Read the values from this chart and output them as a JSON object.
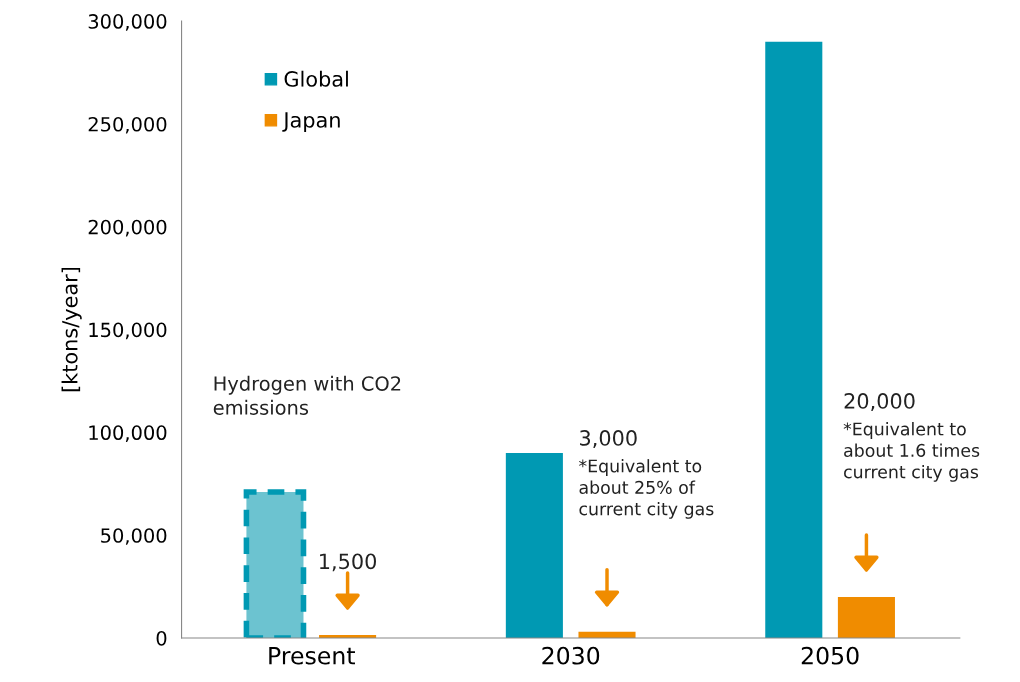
{
  "chart_data": {
    "type": "bar",
    "ylabel": "[ktons/year]",
    "categories": [
      "Present",
      "2030",
      "2050"
    ],
    "series": [
      {
        "name": "Global",
        "color": "#0099b3",
        "values": [
          null,
          90000,
          290000
        ]
      },
      {
        "color": "#6cc3d0",
        "values": [
          71000,
          null,
          null
        ],
        "line_style": "dashed"
      },
      {
        "name": "Japan",
        "color": "#f08c00",
        "values": [
          1500,
          3000,
          20000
        ]
      }
    ],
    "ylim": [
      0,
      300000
    ],
    "yticks": [
      {
        "value": 0,
        "label": "0"
      },
      {
        "value": 50000,
        "label": "50,000"
      },
      {
        "value": 100000,
        "label": "100,000"
      },
      {
        "value": 150000,
        "label": "150,000"
      },
      {
        "value": 200000,
        "label": "200,000"
      },
      {
        "value": 250000,
        "label": "250,000"
      },
      {
        "value": 300000,
        "label": "300,000"
      }
    ],
    "legend": "top left",
    "grid": false,
    "annotations": [
      "Hydrogen with CO2\nemissions",
      "1,500",
      "3,000",
      "*Equivalent to\nabout 25% of\ncurrent city gas",
      "20,000",
      "*Equivalent to\nabout 1.6 times\ncurrent city gas"
    ]
  }
}
